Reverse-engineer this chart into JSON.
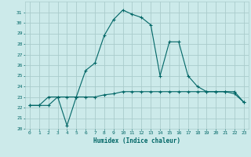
{
  "xlabel": "Humidex (Indice chaleur)",
  "bg_color": "#cceaea",
  "grid_color": "#aacccc",
  "line_color": "#006666",
  "xlim": [
    -0.5,
    23.5
  ],
  "ylim": [
    20,
    32
  ],
  "xticks": [
    0,
    1,
    2,
    3,
    4,
    5,
    6,
    7,
    8,
    9,
    10,
    11,
    12,
    13,
    14,
    15,
    16,
    17,
    18,
    19,
    20,
    21,
    22,
    23
  ],
  "yticks": [
    20,
    21,
    22,
    23,
    24,
    25,
    26,
    27,
    28,
    29,
    30,
    31
  ],
  "curve1_x": [
    0,
    1,
    2,
    3,
    4,
    5,
    6,
    7,
    8,
    9,
    10,
    11,
    12,
    13,
    14,
    15,
    16,
    17,
    18,
    19,
    20,
    21,
    22,
    23
  ],
  "curve1_y": [
    22.2,
    22.2,
    23.0,
    23.0,
    20.3,
    23.0,
    25.5,
    26.2,
    28.8,
    30.3,
    31.2,
    30.8,
    30.5,
    29.8,
    25.0,
    28.2,
    28.2,
    25.0,
    24.0,
    23.5,
    23.5,
    23.5,
    23.3,
    22.5
  ],
  "curve2_x": [
    0,
    1,
    2,
    3,
    4,
    5,
    6,
    7,
    8,
    9,
    10,
    11,
    12,
    13,
    14,
    15,
    16,
    17,
    18,
    19,
    20,
    21,
    22,
    23
  ],
  "curve2_y": [
    22.2,
    22.2,
    22.2,
    23.0,
    23.0,
    23.0,
    23.0,
    23.0,
    23.2,
    23.3,
    23.5,
    23.5,
    23.5,
    23.5,
    23.5,
    23.5,
    23.5,
    23.5,
    23.5,
    23.5,
    23.5,
    23.5,
    23.5,
    22.5
  ]
}
